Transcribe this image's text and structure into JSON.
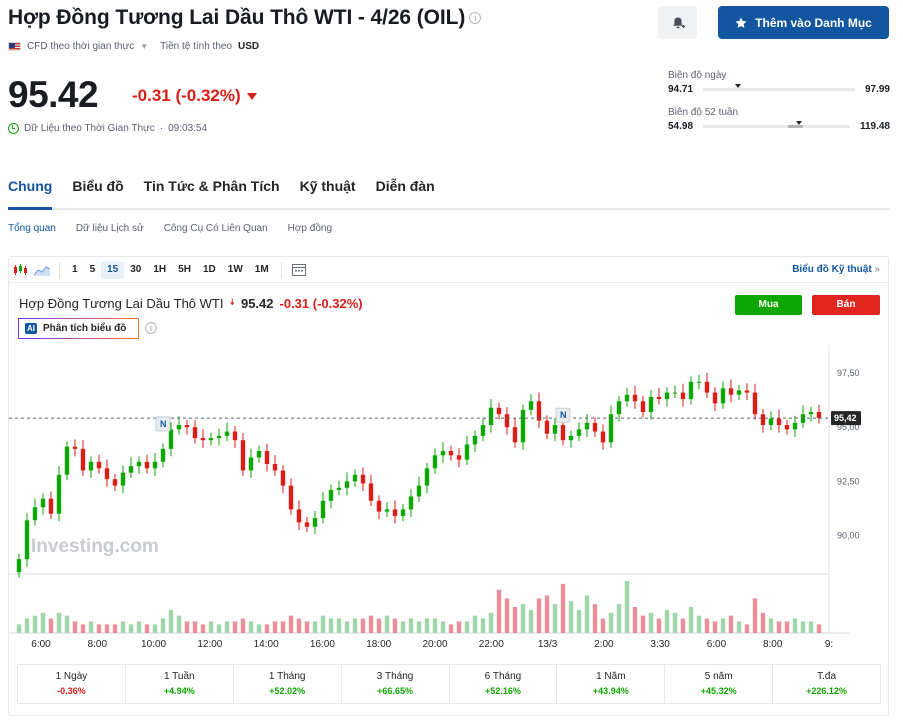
{
  "header": {
    "title": "Hợp Đồng Tương Lai Dầu Thô WTI - 4/26 (OIL)",
    "cfd_label": "CFD theo thời gian thực",
    "currency_label": "Tiền tệ tính theo",
    "currency": "USD",
    "watchlist_label": "Thêm vào Danh Mục"
  },
  "quote": {
    "price": "95.42",
    "change": "-0.31 (-0.32%)",
    "realtime_label": "Dữ Liệu theo Thời Gian Thực",
    "time": "09:03:54"
  },
  "ranges": {
    "day": {
      "label": "Biên độ ngày",
      "low": "94.71",
      "high": "97.99",
      "position": 0.21
    },
    "week52": {
      "label": "Biên độ 52 tuần",
      "low": "54.98",
      "high": "119.48",
      "position": 0.63
    }
  },
  "tabs": [
    "Chung",
    "Biểu đồ",
    "Tin Tức & Phân Tích",
    "Kỹ thuật",
    "Diễn đàn"
  ],
  "subtabs": [
    "Tổng quan",
    "Dữ liệu Lịch sử",
    "Công Cụ Có Liên Quan",
    "Hợp đồng"
  ],
  "toolbar": {
    "intervals": [
      "1",
      "5",
      "15",
      "30",
      "1H",
      "5H",
      "1D",
      "1W",
      "1M"
    ],
    "selected": "15",
    "technical_link": "Biểu đồ Kỹ thuật"
  },
  "chart_head": {
    "name": "Hợp Đồng Tương Lai Dầu Thô WTI",
    "price": "95.42",
    "change": "-0.31 (-0.32%)",
    "buy_label": "Mua",
    "sell_label": "Bán",
    "ai_label": "Phân tích biểu đồ",
    "ai_badge": "AI"
  },
  "chart_data": {
    "type": "candlestick",
    "watermark": "Investing.com",
    "current_price_label": "95,42",
    "y_ticks": [
      "97,50",
      "95,00",
      "92,50",
      "90,00"
    ],
    "y_tick_values": [
      97.5,
      95.0,
      92.5,
      90.0
    ],
    "ylim": [
      88.4,
      98.8
    ],
    "x_ticks": [
      "6:00",
      "8:00",
      "10:00",
      "12:00",
      "14:00",
      "16:00",
      "18:00",
      "20:00",
      "22:00",
      "13/3",
      "2:00",
      "3:30",
      "6:00",
      "8:00",
      "9:"
    ],
    "news_markers": [
      "N",
      "N"
    ],
    "closes": [
      88.9,
      90.7,
      91.3,
      91.7,
      91.0,
      92.8,
      94.1,
      94.0,
      93.0,
      93.4,
      93.1,
      92.6,
      92.3,
      92.9,
      93.2,
      93.4,
      93.1,
      93.4,
      94.0,
      94.9,
      95.1,
      95.0,
      94.5,
      94.4,
      94.5,
      94.6,
      94.8,
      94.4,
      93.0,
      93.6,
      93.9,
      93.3,
      93.0,
      92.3,
      91.2,
      90.6,
      90.4,
      90.8,
      91.6,
      92.1,
      92.2,
      92.5,
      92.8,
      92.4,
      91.6,
      91.1,
      91.2,
      90.9,
      91.2,
      91.8,
      92.3,
      93.1,
      93.7,
      93.9,
      93.7,
      93.5,
      94.2,
      94.6,
      95.1,
      95.9,
      95.6,
      95.0,
      94.3,
      95.8,
      96.2,
      95.3,
      94.7,
      95.1,
      94.4,
      94.6,
      94.9,
      95.2,
      94.8,
      94.3,
      95.6,
      96.2,
      96.5,
      96.2,
      95.7,
      96.4,
      96.3,
      96.6,
      96.6,
      96.3,
      97.1,
      97.1,
      96.6,
      96.1,
      96.8,
      96.5,
      96.7,
      96.6,
      95.6,
      95.1,
      95.4,
      95.1,
      94.9,
      95.2,
      95.6,
      95.7,
      95.42
    ],
    "volumes": [
      3,
      5,
      6,
      7,
      5,
      7,
      6,
      4,
      3,
      4,
      3,
      3,
      3,
      4,
      3,
      4,
      3,
      3,
      5,
      8,
      6,
      4,
      4,
      3,
      4,
      3,
      4,
      4,
      5,
      4,
      3,
      3,
      4,
      4,
      6,
      5,
      4,
      4,
      6,
      5,
      5,
      4,
      5,
      5,
      6,
      5,
      6,
      5,
      4,
      5,
      4,
      5,
      5,
      4,
      3,
      4,
      4,
      6,
      5,
      7,
      15,
      12,
      9,
      10,
      8,
      12,
      13,
      10,
      17,
      11,
      8,
      13,
      10,
      5,
      7,
      10,
      18,
      9,
      6,
      7,
      5,
      8,
      7,
      5,
      9,
      6,
      5,
      4,
      5,
      6,
      4,
      3,
      12,
      7,
      5,
      4,
      4,
      5,
      4,
      4,
      3
    ]
  },
  "performance": [
    {
      "label": "1 Ngày",
      "value": "-0.36%",
      "dir": "down"
    },
    {
      "label": "1 Tuần",
      "value": "+4.94%",
      "dir": "up"
    },
    {
      "label": "1 Tháng",
      "value": "+52.02%",
      "dir": "up"
    },
    {
      "label": "3 Tháng",
      "value": "+66.65%",
      "dir": "up"
    },
    {
      "label": "6 Tháng",
      "value": "+52.16%",
      "dir": "up"
    },
    {
      "label": "1 Năm",
      "value": "+43.94%",
      "dir": "up"
    },
    {
      "label": "5 năm",
      "value": "+45.32%",
      "dir": "up"
    },
    {
      "label": "T.đa",
      "value": "+226.12%",
      "dir": "up"
    }
  ],
  "colors": {
    "up": "#0ea600",
    "down": "#d91e18",
    "accent": "#1256a0"
  }
}
